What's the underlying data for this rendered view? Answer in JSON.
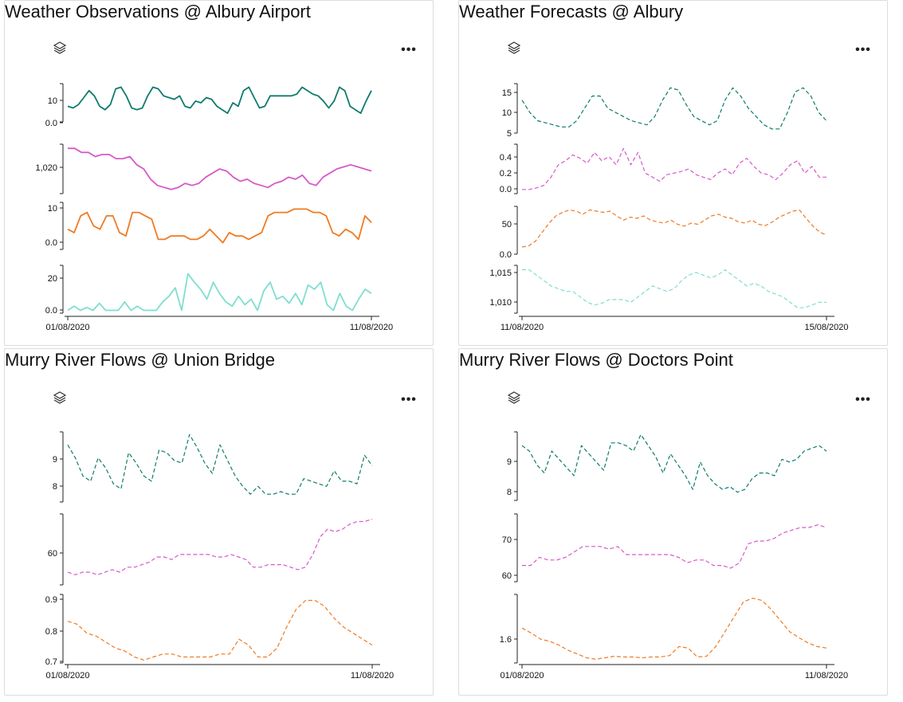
{
  "panels": [
    {
      "title": "Weather Observations @ Albury Airport"
    },
    {
      "title": "Weather Forecasts @ Albury"
    },
    {
      "title": "Murry River Flows @ Union Bridge"
    },
    {
      "title": "Murry River Flows @ Doctors Point"
    }
  ],
  "icons": {
    "layers": "layers-icon",
    "more": "more-options-icon"
  },
  "colors": {
    "teal": "#0f7b6c",
    "magenta": "#d65ac8",
    "orange": "#f07a22",
    "aqua": "#7fded0"
  },
  "chart_data": [
    {
      "type": "line",
      "x_ticks": [
        "01/08/2020",
        "11/08/2020"
      ],
      "series": [
        {
          "color": "#0f7b6c",
          "dash": false,
          "yticks": [
            "10",
            "0.0"
          ],
          "ylim": [
            -5,
            17
          ],
          "values": [
            4,
            3,
            5,
            9,
            13,
            10,
            4,
            2,
            5,
            14,
            15,
            10,
            3,
            2,
            3,
            10,
            15,
            14,
            10,
            9,
            8,
            10,
            4,
            3,
            7,
            6,
            9,
            8,
            4,
            2,
            0,
            6,
            4,
            13,
            15,
            9,
            3,
            4,
            10,
            10,
            10,
            10,
            10,
            11,
            15,
            13,
            11,
            10,
            7,
            3,
            7,
            15,
            13,
            4,
            2,
            0,
            7,
            13
          ]
        },
        {
          "color": "#d65ac8",
          "dash": false,
          "yticks": [
            "1,020"
          ],
          "ylim": [
            1008,
            1032
          ],
          "values": [
            1030,
            1030,
            1028,
            1028,
            1026,
            1027,
            1027,
            1025,
            1025,
            1026,
            1022,
            1020,
            1015,
            1012,
            1011,
            1010,
            1011,
            1013,
            1012,
            1013,
            1016,
            1018,
            1020,
            1019,
            1016,
            1014,
            1015,
            1013,
            1012,
            1011,
            1013,
            1014,
            1016,
            1015,
            1017,
            1013,
            1012,
            1016,
            1018,
            1020,
            1021,
            1022,
            1021,
            1020,
            1019
          ]
        },
        {
          "color": "#f07a22",
          "dash": false,
          "yticks": [
            "10",
            "0.0"
          ],
          "ylim": [
            -2,
            12
          ],
          "values": [
            4,
            3,
            8,
            9,
            5,
            4,
            8,
            8,
            3,
            2,
            9,
            9,
            8,
            7,
            1,
            1,
            2,
            2,
            2,
            1,
            1,
            2,
            4,
            2,
            0,
            3,
            2,
            2,
            1,
            2,
            3,
            8,
            9,
            9,
            9,
            10,
            10,
            10,
            9,
            9,
            8,
            3,
            2,
            4,
            3,
            1,
            8,
            6
          ]
        },
        {
          "color": "#7fded0",
          "dash": false,
          "yticks": [
            "20",
            "0.0"
          ],
          "ylim": [
            -2,
            32
          ],
          "values": [
            0,
            3,
            0,
            2,
            0,
            5,
            0,
            0,
            0,
            6,
            0,
            3,
            0,
            0,
            0,
            6,
            10,
            16,
            0,
            26,
            20,
            15,
            8,
            20,
            12,
            6,
            3,
            10,
            4,
            8,
            0,
            14,
            20,
            8,
            10,
            5,
            12,
            4,
            18,
            15,
            20,
            4,
            0,
            12,
            3,
            0,
            8,
            15,
            12
          ]
        }
      ]
    },
    {
      "type": "line",
      "x_ticks": [
        "11/08/2020",
        "15/08/2020"
      ],
      "series": [
        {
          "color": "#0f7b6c",
          "dash": true,
          "yticks": [
            "15",
            "10",
            "5"
          ],
          "ylim": [
            5,
            17
          ],
          "values": [
            13,
            10,
            8,
            7.5,
            7,
            6.5,
            6.5,
            8,
            11,
            14,
            14,
            11,
            10,
            9,
            8,
            7.5,
            7,
            9,
            13,
            16,
            15.5,
            12,
            9,
            8,
            7,
            8,
            13,
            16,
            14,
            11,
            9,
            7,
            6,
            6,
            10,
            15,
            16,
            14,
            10,
            8
          ]
        },
        {
          "color": "#d65ac8",
          "dash": true,
          "yticks": [
            "0.4",
            "0.2",
            "0.0"
          ],
          "ylim": [
            -0.05,
            0.55
          ],
          "values": [
            0,
            0,
            0.02,
            0.05,
            0.15,
            0.3,
            0.35,
            0.42,
            0.38,
            0.32,
            0.45,
            0.35,
            0.4,
            0.3,
            0.5,
            0.3,
            0.45,
            0.2,
            0.15,
            0.1,
            0.18,
            0.2,
            0.22,
            0.25,
            0.18,
            0.15,
            0.12,
            0.2,
            0.25,
            0.18,
            0.32,
            0.38,
            0.28,
            0.2,
            0.18,
            0.12,
            0.2,
            0.3,
            0.35,
            0.2,
            0.28,
            0.15,
            0.15
          ]
        },
        {
          "color": "#f07a22",
          "dash": true,
          "yticks": [
            "50",
            "0.0"
          ],
          "ylim": [
            -2,
            78
          ],
          "values": [
            10,
            12,
            20,
            35,
            50,
            62,
            68,
            72,
            70,
            65,
            72,
            70,
            68,
            70,
            62,
            55,
            60,
            58,
            62,
            55,
            52,
            50,
            55,
            48,
            45,
            50,
            48,
            55,
            62,
            65,
            60,
            58,
            52,
            50,
            55,
            48,
            46,
            52,
            60,
            65,
            70,
            72,
            58,
            45,
            35,
            30
          ]
        },
        {
          "color": "#7fded0",
          "dash": true,
          "yticks": [
            "1,015",
            "1,010"
          ],
          "ylim": [
            1008,
            1016.8
          ],
          "values": [
            1016,
            1016,
            1015,
            1014,
            1013,
            1012.5,
            1012,
            1012,
            1011,
            1010,
            1009.5,
            1009.8,
            1010.5,
            1010.5,
            1010.5,
            1010,
            1011,
            1012,
            1013,
            1012.5,
            1012,
            1012.5,
            1014,
            1015,
            1015.5,
            1015,
            1014.5,
            1015,
            1016,
            1015,
            1014,
            1013,
            1013.5,
            1013,
            1012,
            1011.5,
            1011,
            1010,
            1009,
            1009,
            1009.5,
            1010,
            1010
          ]
        }
      ]
    },
    {
      "type": "line",
      "x_ticks": [
        "01/08/2020",
        "11/08/2020"
      ],
      "series": [
        {
          "color": "#0f7b6c",
          "dash": true,
          "yticks": [
            "9",
            "8"
          ],
          "ylim": [
            7.3,
            10
          ],
          "values": [
            9.5,
            9.0,
            8.3,
            8.1,
            9.0,
            8.6,
            8.0,
            7.8,
            9.2,
            8.8,
            8.3,
            8.1,
            9.3,
            9.2,
            8.9,
            8.8,
            9.9,
            9.4,
            8.8,
            8.4,
            9.5,
            8.9,
            8.3,
            7.9,
            7.6,
            7.9,
            7.6,
            7.6,
            7.7,
            7.6,
            7.6,
            8.2,
            8.1,
            8.0,
            7.9,
            8.5,
            8.1,
            8.1,
            8.0,
            9.1,
            8.7
          ]
        },
        {
          "color": "#d65ac8",
          "dash": true,
          "yticks": [
            "60"
          ],
          "ylim": [
            50,
            78
          ],
          "values": [
            55,
            54,
            55,
            55,
            54,
            55,
            56,
            55,
            57,
            57,
            58,
            59,
            61,
            61,
            60,
            62,
            62,
            62,
            62,
            62,
            61,
            61,
            62,
            61,
            60,
            57,
            57,
            58,
            58,
            58,
            57,
            56,
            57,
            62,
            69,
            72,
            71,
            72,
            74,
            75,
            75,
            76
          ]
        },
        {
          "color": "#f07a22",
          "dash": true,
          "yticks": [
            "0.9",
            "0.8",
            "0.7"
          ],
          "ylim": [
            0.7,
            0.93
          ],
          "values": [
            0.84,
            0.83,
            0.8,
            0.79,
            0.77,
            0.75,
            0.74,
            0.72,
            0.71,
            0.72,
            0.73,
            0.73,
            0.72,
            0.72,
            0.72,
            0.72,
            0.73,
            0.73,
            0.78,
            0.76,
            0.72,
            0.72,
            0.75,
            0.82,
            0.88,
            0.91,
            0.91,
            0.89,
            0.85,
            0.82,
            0.8,
            0.78,
            0.76
          ]
        }
      ]
    },
    {
      "type": "line",
      "x_ticks": [
        "01/08/2020",
        "11/08/2020"
      ],
      "series": [
        {
          "color": "#0f7b6c",
          "dash": true,
          "yticks": [
            "9",
            "8"
          ],
          "ylim": [
            7.5,
            10
          ],
          "values": [
            9.5,
            9.3,
            8.8,
            8.5,
            9.3,
            9.0,
            8.7,
            8.4,
            9.5,
            9.2,
            8.9,
            8.6,
            9.6,
            9.6,
            9.5,
            9.3,
            9.9,
            9.5,
            9.1,
            8.5,
            9.2,
            8.8,
            8.4,
            7.9,
            8.9,
            8.4,
            8.1,
            7.9,
            8.0,
            7.8,
            7.9,
            8.3,
            8.5,
            8.5,
            8.4,
            9.0,
            8.9,
            9.0,
            9.3,
            9.4,
            9.5,
            9.3
          ]
        },
        {
          "color": "#d65ac8",
          "dash": true,
          "yticks": [
            "70",
            "60"
          ],
          "ylim": [
            55,
            80
          ],
          "values": [
            61,
            61,
            64,
            63,
            63,
            64,
            66,
            68,
            68,
            68,
            67,
            68,
            65,
            65,
            65,
            65,
            65,
            65,
            64,
            62,
            63,
            63,
            61,
            61,
            60,
            62,
            69,
            70,
            70,
            71,
            73,
            74,
            75,
            75,
            76,
            75
          ]
        },
        {
          "color": "#f07a22",
          "dash": true,
          "yticks": [
            "1.6"
          ],
          "ylim": [
            1.38,
            2.3
          ],
          "values": [
            1.85,
            1.78,
            1.7,
            1.67,
            1.62,
            1.55,
            1.5,
            1.45,
            1.43,
            1.45,
            1.47,
            1.46,
            1.46,
            1.45,
            1.46,
            1.46,
            1.48,
            1.6,
            1.58,
            1.46,
            1.47,
            1.6,
            1.8,
            2.0,
            2.2,
            2.25,
            2.22,
            2.1,
            1.95,
            1.8,
            1.72,
            1.65,
            1.6,
            1.58
          ]
        }
      ]
    }
  ]
}
